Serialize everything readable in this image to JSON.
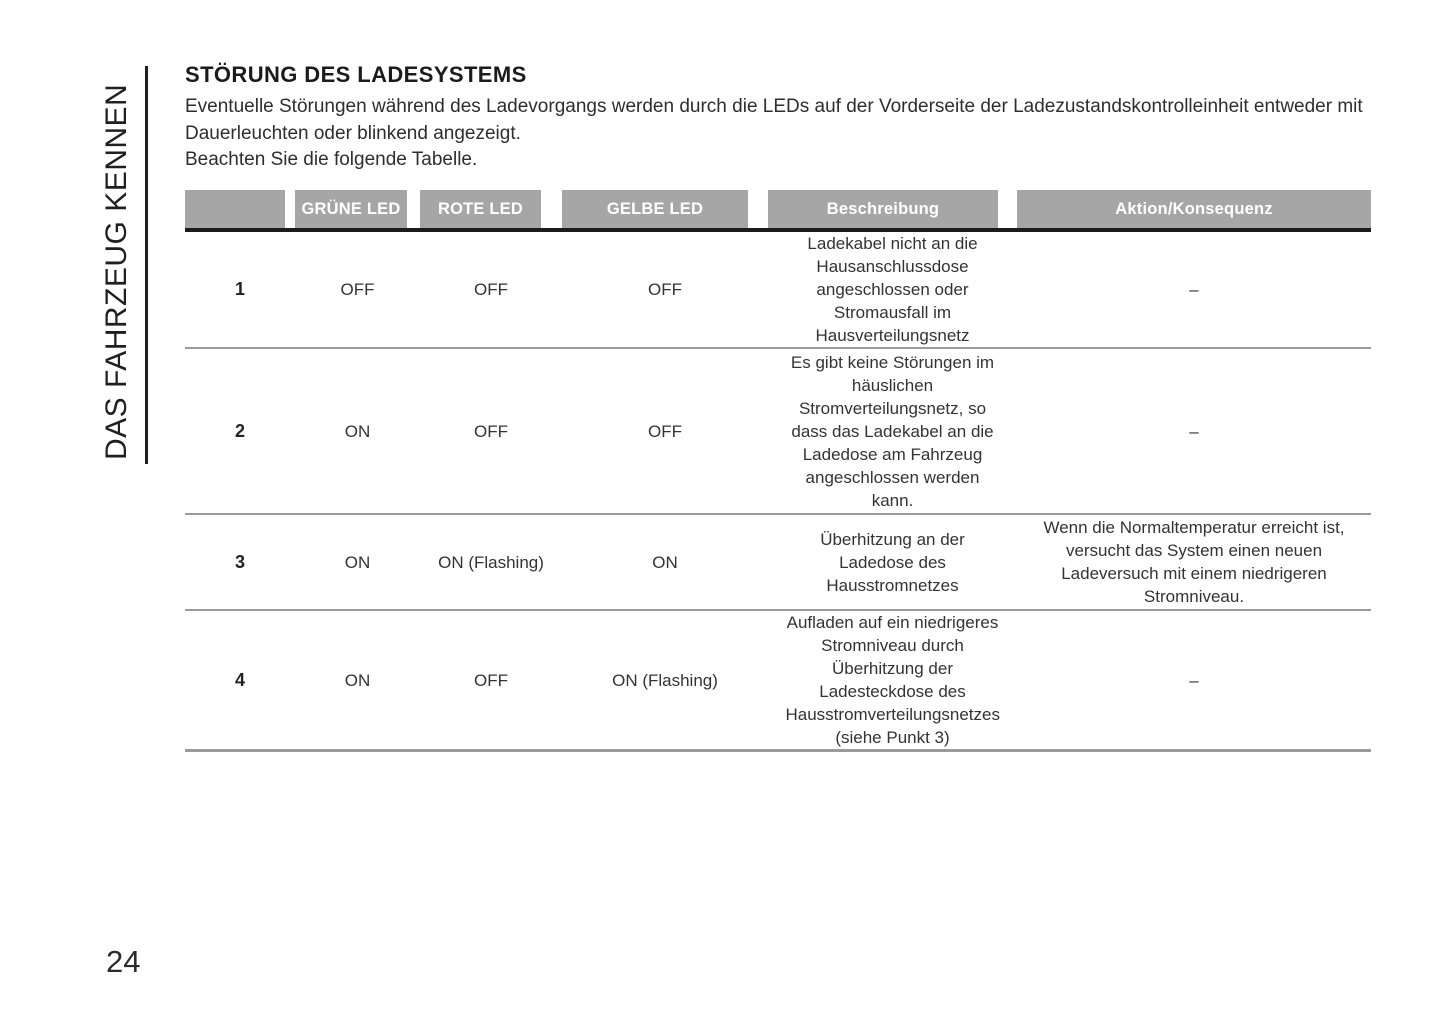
{
  "page": {
    "section_vertical_label": "DAS FAHRZEUG KENNEN",
    "page_number": "24"
  },
  "article": {
    "heading": "STÖRUNG DES LADESYSTEMS",
    "paragraph1": "Eventuelle Störungen während des Ladevorgangs werden durch die LEDs auf der Vorderseite der Ladezustandskontrolleinheit entweder mit Dauerleuchten oder blinkend angezeigt.",
    "paragraph2": "Beachten Sie die folgende Tabelle."
  },
  "table": {
    "headers": {
      "col1": "",
      "col2": "GRÜNE LED",
      "col3": "ROTE LED",
      "col4": "GELBE LED",
      "col5": "Beschreibung",
      "col6": "Aktion/Konsequenz"
    },
    "rows": [
      {
        "num": "1",
        "gruene_led": "OFF",
        "rote_led": "OFF",
        "gelbe_led": "OFF",
        "beschreibung": "Ladekabel nicht an die Hausanschlussdose angeschlossen oder Stromausfall im Hausverteilungsnetz",
        "aktion": "–"
      },
      {
        "num": "2",
        "gruene_led": "ON",
        "rote_led": "OFF",
        "gelbe_led": "OFF",
        "beschreibung": "Es gibt keine Störungen im häuslichen Stromverteilungsnetz, so dass das Ladekabel an die Ladedose am Fahrzeug angeschlossen werden kann.",
        "aktion": "–"
      },
      {
        "num": "3",
        "gruene_led": "ON",
        "rote_led": "ON (Flashing)",
        "gelbe_led": "ON",
        "beschreibung": "Überhitzung an der Ladedose des Hausstromnetzes",
        "aktion": "Wenn die Normaltemperatur erreicht ist, versucht das System einen neuen Ladeversuch mit einem niedrigeren Stromniveau."
      },
      {
        "num": "4",
        "gruene_led": "ON",
        "rote_led": "OFF",
        "gelbe_led": "ON (Flashing)",
        "beschreibung": "Aufladen auf ein niedrigeres Stromniveau durch Überhitzung der Ladesteckdose des Hausstromverteilungsnetzes (siehe Punkt 3)",
        "aktion": "–"
      }
    ]
  },
  "colors": {
    "header_background": "#a6a6a6",
    "header_text": "#ffffff",
    "header_divider": "#1b1b1b",
    "row_divider": "#9a9a9a",
    "text": "#2e2e2e"
  }
}
